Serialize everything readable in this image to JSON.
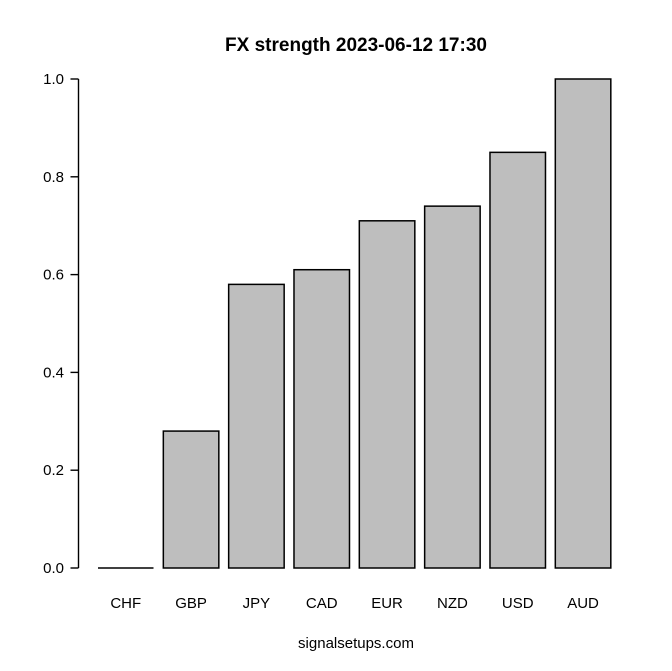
{
  "chart_data": {
    "type": "bar",
    "title": "FX strength 2023-06-12 17:30",
    "caption": "signalsetups.com",
    "categories": [
      "CHF",
      "GBP",
      "JPY",
      "CAD",
      "EUR",
      "NZD",
      "USD",
      "AUD"
    ],
    "values": [
      0.0,
      0.28,
      0.58,
      0.61,
      0.71,
      0.74,
      0.85,
      1.0
    ],
    "xlabel": "",
    "ylabel": "",
    "ylim": [
      0.0,
      1.0
    ],
    "ytick_labels": [
      "0.0",
      "0.2",
      "0.4",
      "0.6",
      "0.8",
      "1.0"
    ],
    "grid": false,
    "legend": "none",
    "colors": {
      "bar_fill": "#bebebe",
      "bar_border": "#000000",
      "axis": "#000000",
      "text": "#000000",
      "background": "#ffffff"
    }
  }
}
